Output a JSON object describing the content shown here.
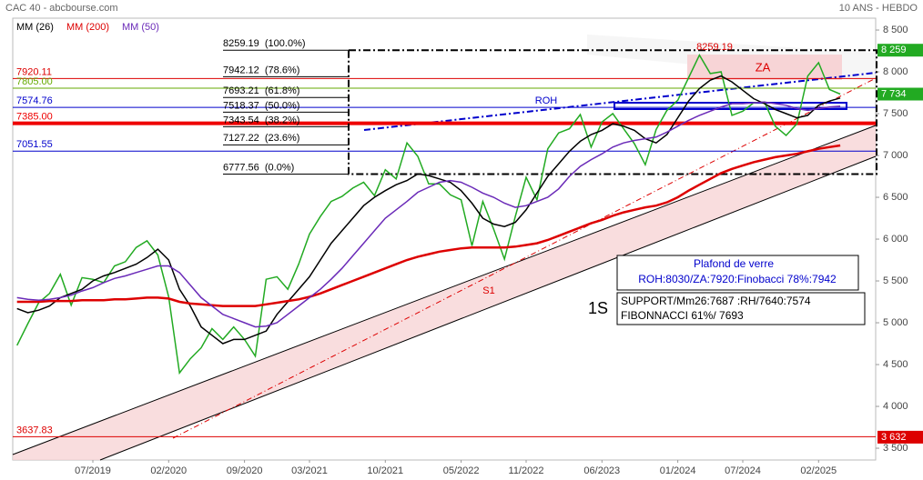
{
  "header": {
    "left": "CAC 40 - abcbourse.com",
    "right": "10 ANS - HEBDO"
  },
  "chart_data": {
    "type": "line",
    "categories": [
      null,
      null,
      null,
      null,
      null,
      null,
      null,
      "07/2019",
      null,
      null,
      null,
      null,
      null,
      null,
      "02/2020",
      null,
      null,
      null,
      null,
      null,
      null,
      "09/2020",
      null,
      null,
      null,
      null,
      null,
      "03/2021",
      null,
      null,
      null,
      null,
      null,
      null,
      "10/2021",
      null,
      null,
      null,
      null,
      null,
      null,
      "05/2022",
      null,
      null,
      null,
      null,
      null,
      "11/2022",
      null,
      null,
      null,
      null,
      null,
      null,
      "06/2023",
      null,
      null,
      null,
      null,
      null,
      null,
      "01/2024",
      null,
      null,
      null,
      null,
      null,
      "07/2024",
      null,
      null,
      null,
      null,
      null,
      null,
      "02/2025",
      null,
      null
    ],
    "series": [
      {
        "name": "MM (26)",
        "color": "#000000",
        "width": 1.5,
        "values": [
          5170,
          5120,
          5150,
          5200,
          5300,
          5350,
          5400,
          5500,
          5560,
          5600,
          5650,
          5700,
          5780,
          5880,
          5750,
          5400,
          5200,
          4950,
          4850,
          4750,
          4800,
          4800,
          4850,
          4900,
          5100,
          5250,
          5400,
          5550,
          5750,
          5950,
          6100,
          6250,
          6400,
          6500,
          6580,
          6650,
          6700,
          6780,
          6760,
          6720,
          6680,
          6580,
          6430,
          6250,
          6180,
          6150,
          6200,
          6350,
          6550,
          6750,
          6900,
          7050,
          7170,
          7250,
          7300,
          7380,
          7350,
          7300,
          7200,
          7150,
          7250,
          7450,
          7650,
          7800,
          7900,
          7950,
          7880,
          7780,
          7680,
          7620,
          7550,
          7500,
          7450,
          7480,
          7600,
          7650,
          7687
        ]
      },
      {
        "name": "MM (200)",
        "color": "#dd0000",
        "width": 2.5,
        "values": [
          5250,
          5250,
          5250,
          5260,
          5260,
          5260,
          5270,
          5270,
          5270,
          5280,
          5280,
          5290,
          5300,
          5300,
          5290,
          5250,
          5230,
          5220,
          5210,
          5200,
          5200,
          5200,
          5200,
          5220,
          5240,
          5260,
          5280,
          5310,
          5350,
          5400,
          5450,
          5500,
          5550,
          5600,
          5650,
          5700,
          5750,
          5790,
          5820,
          5850,
          5870,
          5890,
          5900,
          5900,
          5900,
          5900,
          5910,
          5930,
          5950,
          5990,
          6040,
          6090,
          6140,
          6190,
          6230,
          6280,
          6320,
          6350,
          6380,
          6400,
          6440,
          6500,
          6580,
          6650,
          6720,
          6790,
          6840,
          6880,
          6920,
          6950,
          6980,
          7000,
          7020,
          7050,
          7080,
          7100,
          7120
        ]
      },
      {
        "name": "MM (50)",
        "color": "#6a2ab8",
        "width": 1.5,
        "values": [
          5300,
          5280,
          5270,
          5280,
          5300,
          5330,
          5380,
          5420,
          5480,
          5530,
          5560,
          5600,
          5640,
          5680,
          5680,
          5600,
          5450,
          5300,
          5200,
          5100,
          5050,
          5000,
          4950,
          4960,
          5000,
          5100,
          5200,
          5300,
          5400,
          5520,
          5650,
          5800,
          5950,
          6100,
          6250,
          6350,
          6450,
          6560,
          6620,
          6680,
          6700,
          6680,
          6620,
          6550,
          6500,
          6430,
          6380,
          6400,
          6450,
          6500,
          6600,
          6750,
          6870,
          6950,
          7020,
          7100,
          7150,
          7180,
          7200,
          7220,
          7280,
          7350,
          7420,
          7480,
          7530,
          7580,
          7620,
          7620,
          7630,
          7640,
          7620,
          7600,
          7560,
          7540,
          7560,
          7580,
          7590
        ]
      }
    ],
    "price": {
      "color": "#22aa22",
      "values": [
        4730,
        4990,
        5240,
        5350,
        5580,
        5210,
        5540,
        5520,
        5480,
        5680,
        5730,
        5900,
        5980,
        5810,
        5310,
        4400,
        4570,
        4700,
        4930,
        4800,
        4950,
        4800,
        4600,
        5520,
        5550,
        5400,
        5700,
        6060,
        6270,
        6450,
        6510,
        6610,
        6680,
        6520,
        6830,
        6720,
        7150,
        6990,
        6660,
        6660,
        6530,
        6470,
        5920,
        6450,
        6120,
        5760,
        6270,
        6740,
        6470,
        7080,
        7270,
        7320,
        7490,
        7100,
        7400,
        7500,
        7320,
        7140,
        6890,
        7310,
        7540,
        7660,
        7930,
        8200,
        7980,
        8000,
        7480,
        7530,
        7630,
        7640,
        7350,
        7240,
        7380,
        7950,
        8110,
        7790,
        7734
      ]
    },
    "ylim": [
      3359,
      8620
    ],
    "yticks": [
      {
        "value": 3500,
        "label": "3 500"
      },
      {
        "value": 4000,
        "label": "4 000"
      },
      {
        "value": 4500,
        "label": "4 500"
      },
      {
        "value": 5000,
        "label": "5 000"
      },
      {
        "value": 5500,
        "label": "5 500"
      },
      {
        "value": 6000,
        "label": "6 000"
      },
      {
        "value": 6500,
        "label": "6 500"
      },
      {
        "value": 7000,
        "label": "7 000"
      },
      {
        "value": 7500,
        "label": "7 500"
      },
      {
        "value": 8000,
        "label": "8 000"
      },
      {
        "value": 8500,
        "label": "8 500"
      }
    ],
    "levels": [
      {
        "value": 7920.11,
        "label": "7920.11",
        "color": "#dd0000",
        "width": 1
      },
      {
        "value": 7805.0,
        "label": "7805.00",
        "color": "#66aa00",
        "width": 1
      },
      {
        "value": 7574.76,
        "label": "7574.76",
        "color": "#0000cc",
        "width": 1
      },
      {
        "value": 7385.0,
        "label": "7385.00",
        "color": "#ee0000",
        "width": 4
      },
      {
        "value": 7051.55,
        "label": "7051.55",
        "color": "#0000cc",
        "width": 1
      },
      {
        "value": 3637.83,
        "label": "3637.83",
        "color": "#dd0000",
        "width": 1
      }
    ],
    "fibonacci": [
      {
        "value": 8259.19,
        "label": "8259.19  (100.0%)"
      },
      {
        "value": 7942.12,
        "label": "7942.12  (78.6%)"
      },
      {
        "value": 7693.21,
        "label": "7693.21  (61.8%)"
      },
      {
        "value": 7518.37,
        "label": "7518.37  (50.0%)"
      },
      {
        "value": 7343.54,
        "label": "7343.54  (38.2%)"
      },
      {
        "value": 7127.22,
        "label": "7127.22  (23.6%)"
      },
      {
        "value": 6777.56,
        "label": "6777.56  (0.0%)"
      }
    ],
    "price_labels": [
      {
        "value": 8259,
        "label": "8 259",
        "color": "#22aa22"
      },
      {
        "value": 7734,
        "label": "7 734",
        "color": "#22aa22"
      },
      {
        "value": 3632,
        "label": "3 632",
        "color": "#dd0000"
      }
    ],
    "annotations": {
      "top": "8259.19",
      "za": "ZA",
      "roh": "ROH",
      "s1": "S1",
      "period": "1S",
      "box1_title": "Plafond de verre",
      "box1_text": "ROH:8030/ZA:7920:Finobacci 78%:7942",
      "box2_line1": "SUPPORT/Mm26:7687 :RH/7640:7574",
      "box2_line2": "FIBONNACCI 61%/ 7693"
    }
  }
}
